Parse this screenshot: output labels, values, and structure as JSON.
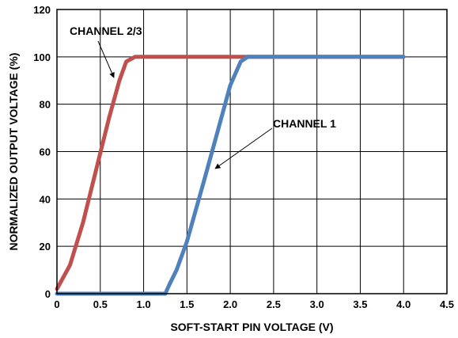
{
  "chart_data": {
    "type": "line",
    "title": "",
    "xlabel": "SOFT-START PIN VOLTAGE (V)",
    "ylabel": "NORMALIZED OUTPUT VOLTAGE (%)",
    "xlim": [
      0,
      4.5
    ],
    "ylim": [
      0,
      120
    ],
    "grid": true,
    "x_ticks": [
      "0",
      "0.5",
      "1.0",
      "1.5",
      "2.0",
      "2.5",
      "3.0",
      "3.5",
      "4.0",
      "4.5"
    ],
    "y_ticks": [
      "0",
      "20",
      "40",
      "60",
      "80",
      "100",
      "120"
    ],
    "series": [
      {
        "name": "CHANNEL 2/3",
        "color": "#c0504d",
        "points": [
          [
            0,
            2
          ],
          [
            0.15,
            12
          ],
          [
            0.3,
            30
          ],
          [
            0.45,
            52
          ],
          [
            0.6,
            74
          ],
          [
            0.72,
            90
          ],
          [
            0.8,
            98
          ],
          [
            0.9,
            100
          ],
          [
            1.0,
            100
          ],
          [
            4.0,
            100
          ]
        ]
      },
      {
        "name": "CHANNEL 1",
        "color": "#4f81bd",
        "points": [
          [
            0,
            0
          ],
          [
            1.25,
            0
          ],
          [
            1.3,
            4
          ],
          [
            1.38,
            10
          ],
          [
            1.5,
            22
          ],
          [
            1.7,
            48
          ],
          [
            1.85,
            68
          ],
          [
            2.0,
            88
          ],
          [
            2.12,
            98
          ],
          [
            2.2,
            100
          ],
          [
            2.3,
            100
          ],
          [
            4.0,
            100
          ]
        ]
      }
    ],
    "annotations": [
      {
        "text": "CHANNEL 2/3",
        "points_to_series": "CHANNEL 2/3",
        "arrow_target": [
          0.62,
          91
        ]
      },
      {
        "text": "CHANNEL 1",
        "points_to_series": "CHANNEL 1",
        "arrow_target": [
          1.78,
          52
        ]
      }
    ]
  }
}
